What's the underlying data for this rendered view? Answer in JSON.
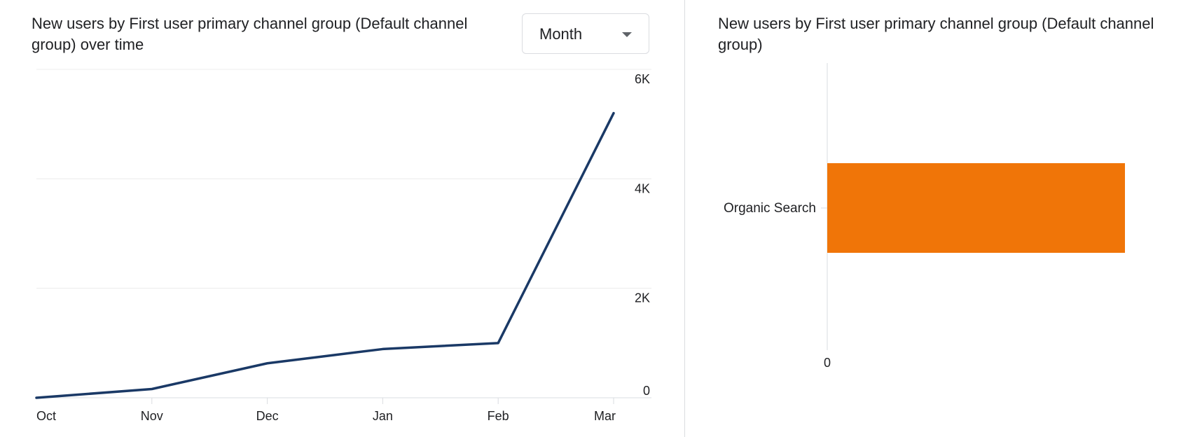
{
  "line_card": {
    "title": "New users by First user primary channel group (Default channel group) over time",
    "granularity": {
      "selected": "Month"
    }
  },
  "bar_card": {
    "title": "New users by First user primary channel group (Default channel group)"
  },
  "colors": {
    "line": "#1a3966",
    "bar": "#f07508",
    "grid": "#ececec",
    "axis_text": "#202124"
  },
  "chart_data": [
    {
      "type": "line",
      "x": [
        "Oct",
        "Nov",
        "Dec",
        "Jan",
        "Feb",
        "Mar"
      ],
      "series": [
        {
          "values": [
            0,
            160,
            630,
            890,
            1000,
            5200
          ]
        }
      ],
      "ylim": [
        0,
        6000
      ],
      "yticks": [
        0,
        2000,
        4000,
        6000
      ],
      "ytick_labels": [
        "0",
        "2K",
        "4K",
        "6K"
      ],
      "y_axis_side": "right",
      "grid": true,
      "legend": "none"
    },
    {
      "type": "bar",
      "orientation": "horizontal",
      "categories": [
        "Organic Search"
      ],
      "values": [
        5200
      ],
      "xlim": [
        0,
        5200
      ],
      "xtick_labels": [
        "0"
      ],
      "grid": false,
      "legend": "none"
    }
  ]
}
